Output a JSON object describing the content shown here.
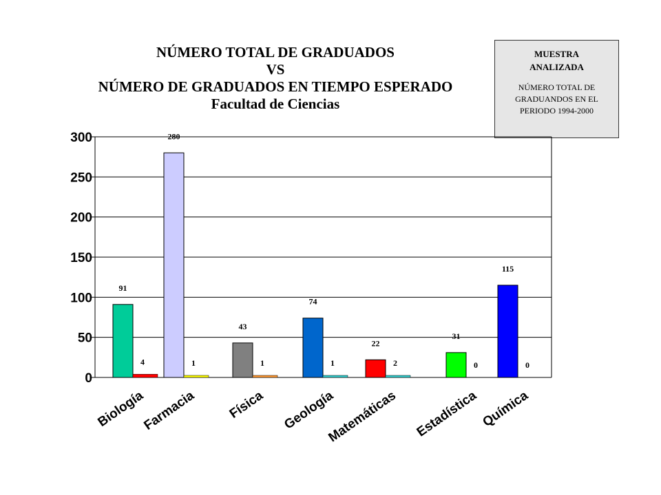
{
  "title_lines": [
    "NÚMERO TOTAL DE GRADUADOS",
    "VS",
    "NÚMERO DE GRADUADOS EN TIEMPO ESPERADO",
    "Facultad de Ciencias"
  ],
  "legend_box": {
    "title_lines": [
      "MUESTRA",
      "ANALIZADA"
    ],
    "text_lines": [
      "NÚMERO TOTAL DE",
      "GRADUANDOS EN EL",
      "PERIODO 1994-2000"
    ]
  },
  "chart_data": {
    "type": "bar",
    "title": "NÚMERO TOTAL DE GRADUADOS VS NÚMERO DE GRADUADOS EN TIEMPO ESPERADO Facultad de Ciencias",
    "xlabel": "",
    "ylabel": "",
    "ylim": [
      0,
      300
    ],
    "yticks": [
      0,
      50,
      100,
      150,
      200,
      250,
      300
    ],
    "grid": true,
    "categories": [
      "Biología",
      "Farmacia",
      "Física",
      "Geología",
      "Matemáticas",
      "Estadística",
      "Química"
    ],
    "series": [
      {
        "values": [
          91,
          280,
          43,
          74,
          22,
          31,
          115
        ]
      },
      {
        "values": [
          4,
          1,
          1,
          1,
          2,
          0,
          0
        ]
      }
    ],
    "colors": {
      "total": [
        "#00cc99",
        "#ccccff",
        "#808080",
        "#0066cc",
        "#ff0000",
        "#00ff00",
        "#0000ff"
      ],
      "on_time": [
        "#ff0000",
        "#ffff00",
        "#ff9933",
        "#33cccc",
        "#33cccc",
        "#ffffff",
        "#ffffff"
      ]
    }
  }
}
